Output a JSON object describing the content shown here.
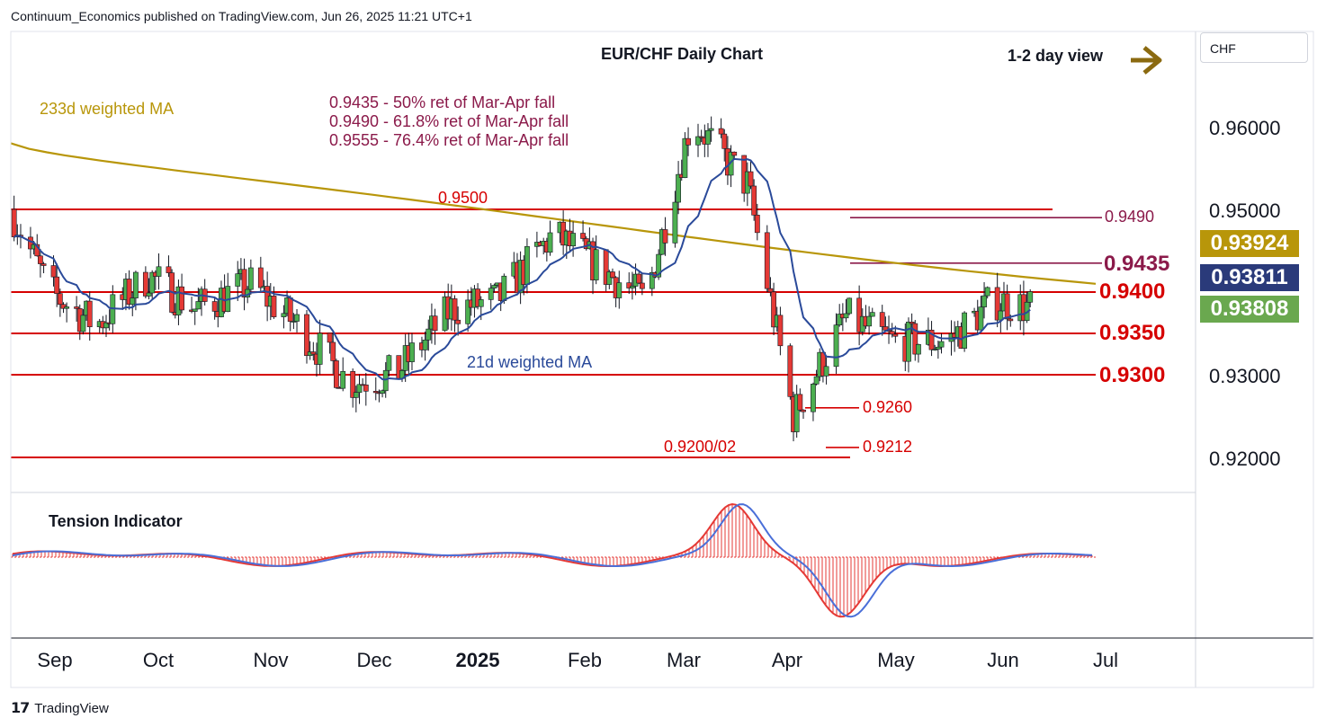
{
  "header": {
    "publisher": "Continuum_Economics published on TradingView.com, Jun 26, 2025 11:21 UTC+1"
  },
  "footer": {
    "logo": "𝟭𝟳",
    "brand": "TradingView"
  },
  "axis_currency": "CHF",
  "colors": {
    "up_candle": "#4caf50",
    "down_candle": "#e53935",
    "wick": "#131722",
    "ma233": "#b8960a",
    "ma21": "#2a4a9a",
    "levels": "#d60000",
    "fib": "#8b1a4a",
    "arrow": "#8b6a10",
    "badge_ma233": "#b8960a",
    "badge_ma21": "#2a3a7a",
    "badge_price": "#6aa84f"
  },
  "price_axis_labels": [
    "0.96000",
    "0.95000",
    "0.93000",
    "0.92000"
  ],
  "badges": {
    "ma233": "0.93924",
    "ma21": "0.93811",
    "last_price": "0.93808"
  },
  "month_labels": [
    "Sep",
    "Oct",
    "Nov",
    "Dec",
    "2025",
    "Feb",
    "Mar",
    "Apr",
    "May",
    "Jun",
    "Jul"
  ],
  "annotations": {
    "title": "EUR/CHF Daily Chart",
    "view": "1-2 day view",
    "ma233_label": "233d weighted MA",
    "ma21_label": "21d weighted MA",
    "fib_lines": [
      "0.9435 - 50% ret of Mar-Apr fall",
      "0.9490 - 61.8% ret of Mar-Apr fall",
      "0.9555 - 76.4% ret of Mar-Apr fall"
    ],
    "l9500": "0.9500",
    "l9490": "0.9490",
    "l9435": "0.9435",
    "l9400": "0.9400",
    "l9350": "0.9350",
    "l9300": "0.9300",
    "l9260": "0.9260",
    "l9212": "0.9212",
    "l9200": "0.9200/02",
    "tension": "Tension Indicator"
  },
  "chart_data": {
    "type": "candlestick",
    "title": "EUR/CHF Daily Chart",
    "y_range": [
      0.918,
      0.9665
    ],
    "x_range": [
      "2024-08-20",
      "2025-08-15"
    ],
    "support_resistance": [
      0.95,
      0.949,
      0.9435,
      0.94,
      0.935,
      0.93,
      0.926,
      0.9212,
      0.92
    ],
    "fibonacci": [
      {
        "level": 0.9435,
        "ratio": "50%"
      },
      {
        "level": 0.949,
        "ratio": "61.8%"
      },
      {
        "level": 0.9555,
        "ratio": "76.4%"
      }
    ],
    "last_close": 0.93808,
    "ma233_last": 0.93924,
    "ma21_last": 0.93811,
    "monthly_closes": {
      "x": [
        "2024-08-20",
        "2024-09-01",
        "2024-09-15",
        "2024-10-01",
        "2024-10-15",
        "2024-11-01",
        "2024-11-15",
        "2024-12-01",
        "2024-12-15",
        "2025-01-01",
        "2025-01-15",
        "2025-02-01",
        "2025-02-15",
        "2025-03-01",
        "2025-03-15",
        "2025-04-01",
        "2025-04-15",
        "2025-05-01",
        "2025-05-15",
        "2025-06-01",
        "2025-06-15",
        "2025-06-26"
      ],
      "y": [
        0.95,
        0.94,
        0.936,
        0.942,
        0.938,
        0.941,
        0.936,
        0.929,
        0.93,
        0.938,
        0.939,
        0.947,
        0.943,
        0.939,
        0.961,
        0.953,
        0.925,
        0.937,
        0.934,
        0.934,
        0.939,
        0.9381
      ]
    }
  }
}
